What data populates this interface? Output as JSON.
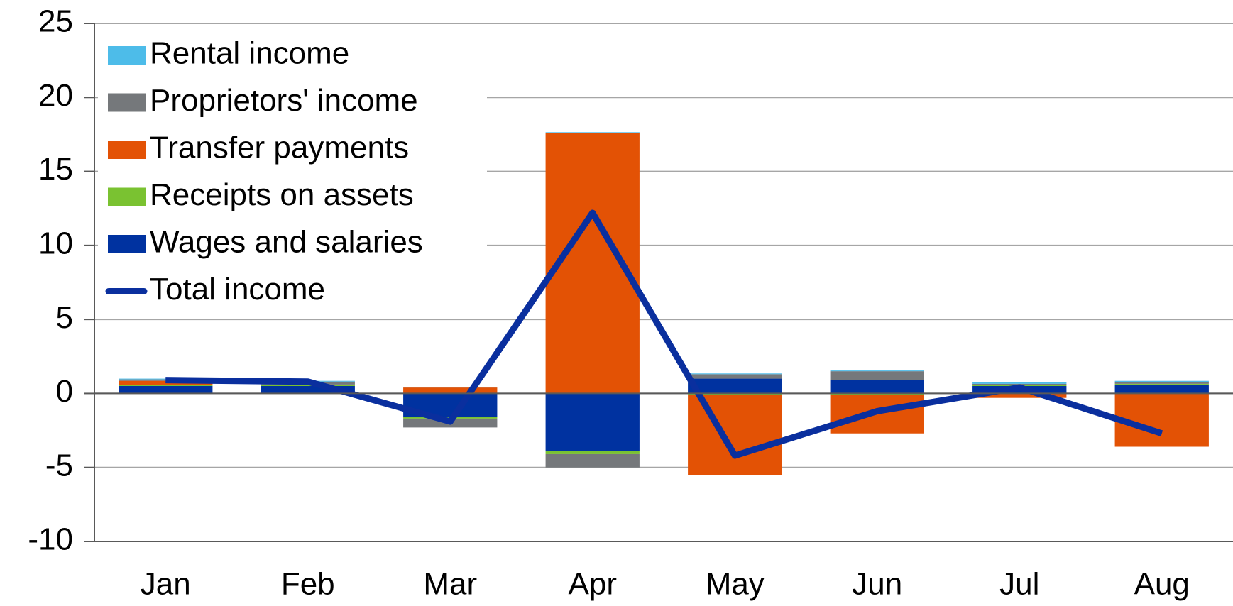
{
  "chart_data": {
    "type": "bar",
    "stacked": true,
    "categories": [
      "Jan",
      "Feb",
      "Mar",
      "Apr",
      "May",
      "Jun",
      "Jul",
      "Aug"
    ],
    "series": [
      {
        "name": "Wages and salaries",
        "color": "#0032a0",
        "values": [
          0.5,
          0.5,
          -1.6,
          -3.9,
          1.0,
          0.9,
          0.5,
          0.6
        ]
      },
      {
        "name": "Receipts on assets",
        "color": "#7ac231",
        "values": [
          0.05,
          0.05,
          -0.1,
          -0.2,
          -0.1,
          -0.1,
          0.05,
          0.05
        ]
      },
      {
        "name": "Transfer payments",
        "color": "#e35205",
        "values": [
          0.3,
          0.05,
          0.4,
          17.6,
          -5.4,
          -2.6,
          -0.3,
          -3.6
        ]
      },
      {
        "name": "Proprietors' income",
        "color": "#75787b",
        "values": [
          0.1,
          0.2,
          -0.6,
          -0.9,
          0.3,
          0.6,
          0.1,
          0.1
        ]
      },
      {
        "name": "Rental income",
        "color": "#4dbce9",
        "values": [
          0.05,
          0.05,
          0.05,
          0.05,
          0.05,
          0.05,
          0.1,
          0.1
        ]
      },
      {
        "name": "Total income",
        "color": "#0a2f9e",
        "type": "line",
        "values": [
          0.9,
          0.8,
          -1.9,
          12.2,
          -4.2,
          -1.2,
          0.4,
          -2.7
        ]
      }
    ],
    "ylim": [
      -10,
      25
    ],
    "yticks": [
      -10,
      -5,
      0,
      5,
      10,
      15,
      20,
      25
    ],
    "grid": true,
    "legend": "upper left"
  }
}
